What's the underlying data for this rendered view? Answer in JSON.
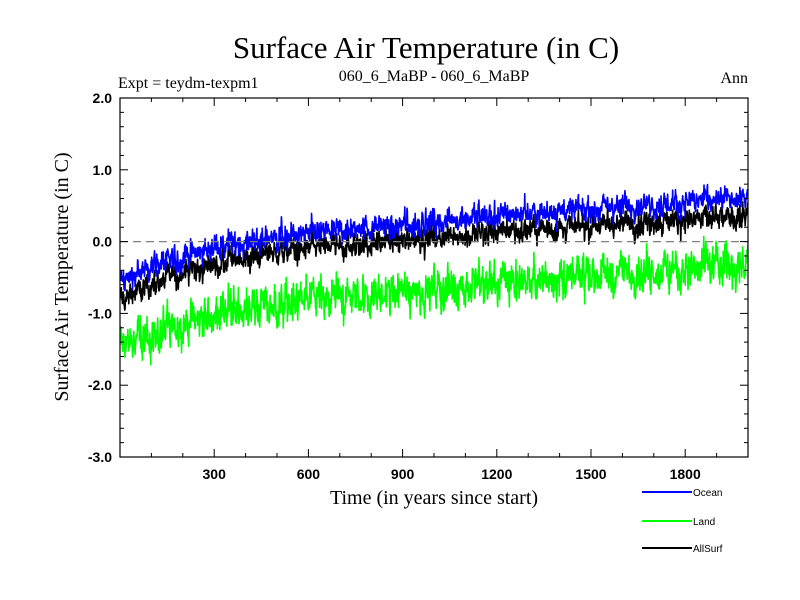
{
  "chart_data": {
    "type": "line",
    "title": "Surface Air Temperature (in C)",
    "subtitle_left": "Expt = teydm-texpm1",
    "subtitle_center": "060_6_MaBP - 060_6_MaBP",
    "subtitle_right": "Ann",
    "xlabel": "Time (in years since start)",
    "ylabel": "Surface Air Temperature (in C)",
    "xlim": [
      0,
      2000
    ],
    "ylim": [
      -3.0,
      2.0
    ],
    "x_ticks": [
      300,
      600,
      900,
      1200,
      1500,
      1800
    ],
    "x_tick_labels": [
      "300",
      "600",
      "900",
      "1200",
      "1500",
      "1800"
    ],
    "y_ticks": [
      -3.0,
      -2.0,
      -1.0,
      0.0,
      1.0,
      2.0
    ],
    "y_tick_labels": [
      "-3.0",
      "-2.0",
      "-1.0",
      "0.0",
      "1.0",
      "2.0"
    ],
    "reference_line": 0.0,
    "series": [
      {
        "name": "Land",
        "color": "#00ff00",
        "x": [
          0,
          100,
          200,
          300,
          400,
          500,
          600,
          700,
          800,
          900,
          1000,
          1100,
          1200,
          1300,
          1400,
          1500,
          1600,
          1700,
          1800,
          1900,
          2000
        ],
        "values": [
          -1.45,
          -1.3,
          -1.15,
          -1.0,
          -0.92,
          -0.88,
          -0.82,
          -0.78,
          -0.74,
          -0.7,
          -0.66,
          -0.62,
          -0.58,
          -0.54,
          -0.5,
          -0.46,
          -0.42,
          -0.4,
          -0.38,
          -0.35,
          -0.3
        ],
        "noise": 0.28
      },
      {
        "name": "AllSurf",
        "color": "#000000",
        "x": [
          0,
          100,
          200,
          300,
          400,
          500,
          600,
          700,
          800,
          900,
          1000,
          1100,
          1200,
          1300,
          1400,
          1500,
          1600,
          1700,
          1800,
          1900,
          2000
        ],
        "values": [
          -0.8,
          -0.6,
          -0.42,
          -0.3,
          -0.22,
          -0.16,
          -0.1,
          -0.06,
          -0.02,
          0.02,
          0.06,
          0.1,
          0.14,
          0.17,
          0.2,
          0.23,
          0.26,
          0.28,
          0.3,
          0.32,
          0.36
        ],
        "noise": 0.17
      },
      {
        "name": "Ocean",
        "color": "#0000ff",
        "x": [
          0,
          100,
          200,
          300,
          400,
          500,
          600,
          700,
          800,
          900,
          1000,
          1100,
          1200,
          1300,
          1400,
          1500,
          1600,
          1700,
          1800,
          1900,
          2000
        ],
        "values": [
          -0.55,
          -0.35,
          -0.2,
          -0.08,
          0.0,
          0.06,
          0.12,
          0.16,
          0.2,
          0.24,
          0.28,
          0.32,
          0.36,
          0.4,
          0.43,
          0.46,
          0.5,
          0.52,
          0.55,
          0.58,
          0.62
        ],
        "noise": 0.17
      }
    ],
    "legend": [
      {
        "name": "Ocean",
        "color": "#0000ff"
      },
      {
        "name": "Land",
        "color": "#00ff00"
      },
      {
        "name": "AllSurf",
        "color": "#000000"
      }
    ]
  }
}
